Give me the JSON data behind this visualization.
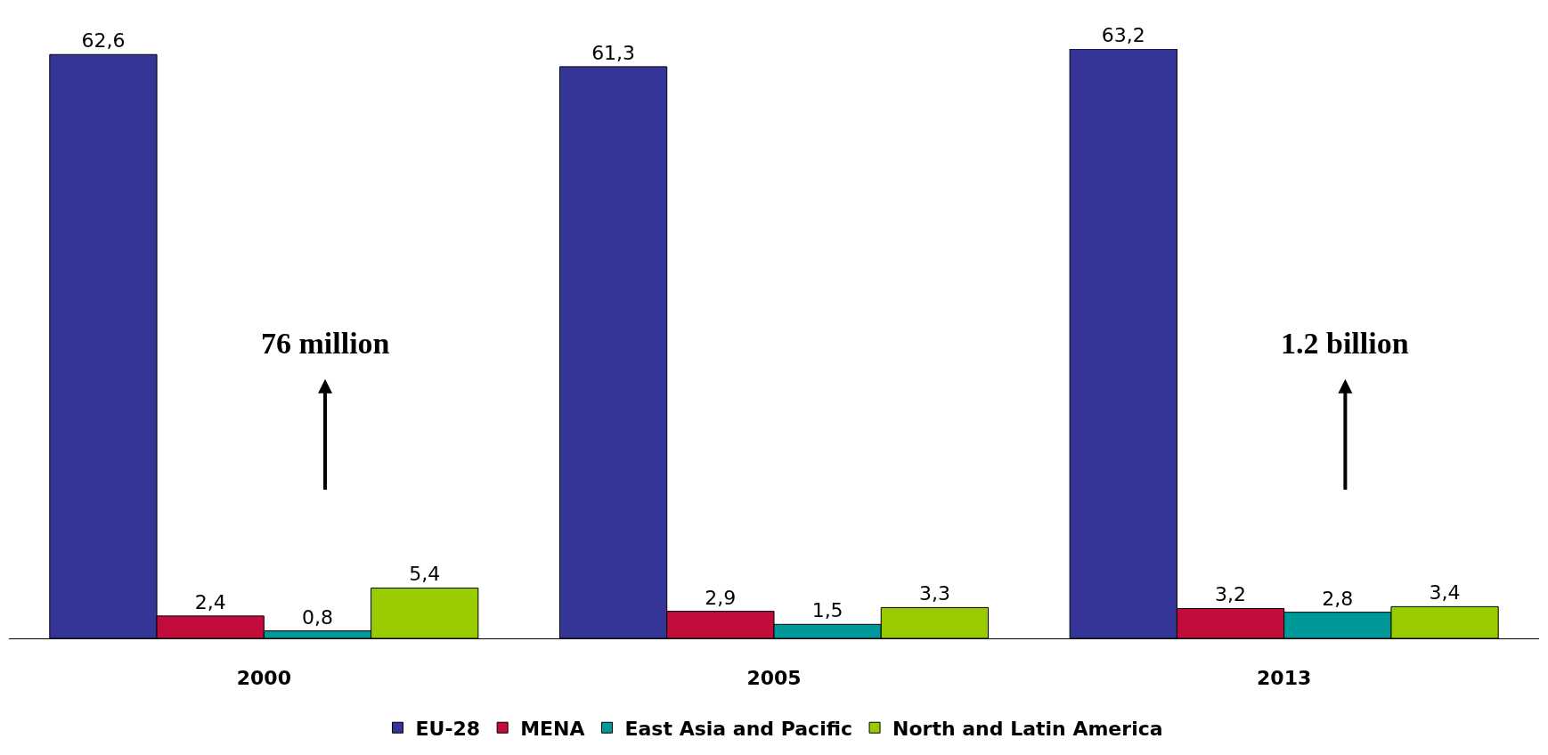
{
  "chart_data": {
    "type": "bar",
    "categories": [
      "2000",
      "2005",
      "2013"
    ],
    "series": [
      {
        "name": "EU-28",
        "color": "#353598",
        "values": [
          62.6,
          61.3,
          63.2
        ],
        "value_labels": [
          "62,6",
          "61,3",
          "63,2"
        ]
      },
      {
        "name": "MENA",
        "color": "#c20c3c",
        "values": [
          2.4,
          2.9,
          3.2
        ],
        "value_labels": [
          "2,4",
          "2,9",
          "3,2"
        ]
      },
      {
        "name": "East Asia and Pacific",
        "color": "#009999",
        "values": [
          0.8,
          1.5,
          2.8
        ],
        "value_labels": [
          "0,8",
          "1,5",
          "2,8"
        ]
      },
      {
        "name": "North and Latin America",
        "color": "#99cc00",
        "values": [
          5.4,
          3.3,
          3.4
        ],
        "value_labels": [
          "5,4",
          "3,3",
          "3,4"
        ]
      }
    ],
    "annotations": [
      "76 million",
      "1.2 billion"
    ],
    "legend": "bottom"
  }
}
